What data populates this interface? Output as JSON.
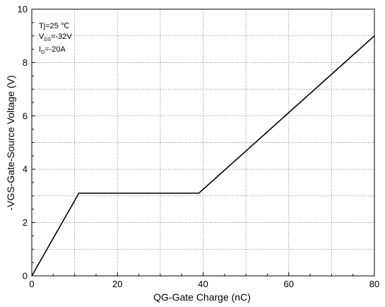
{
  "chart_data": {
    "type": "line",
    "title": "",
    "xlabel": "QG-Gate Charge (nC)",
    "ylabel": "-VGS-Gate-Source Voltage (V)",
    "xlim": [
      0,
      80
    ],
    "ylim": [
      0,
      10
    ],
    "x_ticks": [
      "0",
      "20",
      "40",
      "60",
      "80"
    ],
    "y_ticks": [
      "0",
      "2",
      "4",
      "6",
      "8",
      "10"
    ],
    "grid": true,
    "series": [
      {
        "x": [
          0,
          11,
          39,
          80
        ],
        "y": [
          0,
          3.1,
          3.1,
          9.0
        ],
        "color": "#000000"
      }
    ],
    "annotations": {
      "tj": "Tj=25 ℃",
      "vds_main": "V",
      "vds_sub": "DS",
      "vds_value": "=-32V",
      "id_main": "I",
      "id_sub": "D",
      "id_value": "=-20A"
    }
  }
}
